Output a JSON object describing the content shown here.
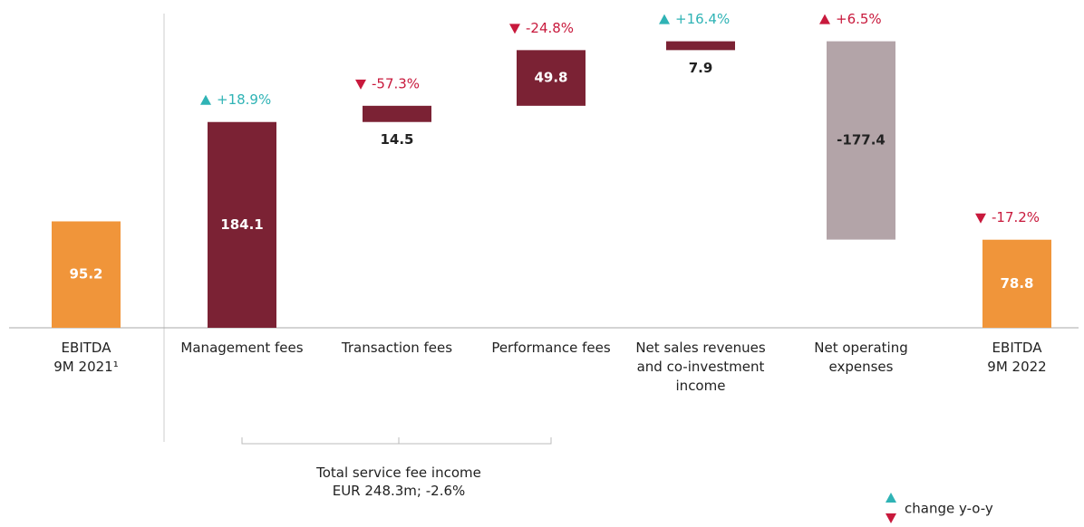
{
  "chart_data": {
    "type": "waterfall",
    "categories": [
      "EBITDA\n9M 2021¹",
      "Management fees",
      "Transaction fees",
      "Performance fees",
      "Net sales revenues\nand co-investment\nincome",
      "Net operating\nexpenses",
      "EBITDA\n9M 2022"
    ],
    "values": [
      95.2,
      184.1,
      14.5,
      49.8,
      7.9,
      -177.4,
      78.8
    ],
    "kinds": [
      "total",
      "step",
      "step",
      "step",
      "step",
      "step",
      "total"
    ],
    "colors": [
      "#f0953a",
      "#7b2234",
      "#7b2234",
      "#7b2234",
      "#7b2234",
      "#b3a4a8",
      "#f0953a"
    ],
    "changes": [
      null,
      18.9,
      -57.3,
      -24.8,
      16.4,
      6.5,
      -17.2
    ],
    "change_labels": [
      null,
      "+18.9%",
      "-57.3%",
      "-24.8%",
      "+16.4%",
      "+6.5%",
      "-17.2%"
    ],
    "change_colors": [
      null,
      "#2fb3b5",
      "#c8193c",
      "#c8193c",
      "#2fb3b5",
      "#c8193c",
      "#c8193c"
    ],
    "ylim": [
      0,
      290
    ],
    "annotation": "Total service fee income\nEUR 248.3m; -2.6%",
    "legend_label": "change y-o-y",
    "legend_colors": [
      "#2fb3b5",
      "#c8193c"
    ]
  }
}
